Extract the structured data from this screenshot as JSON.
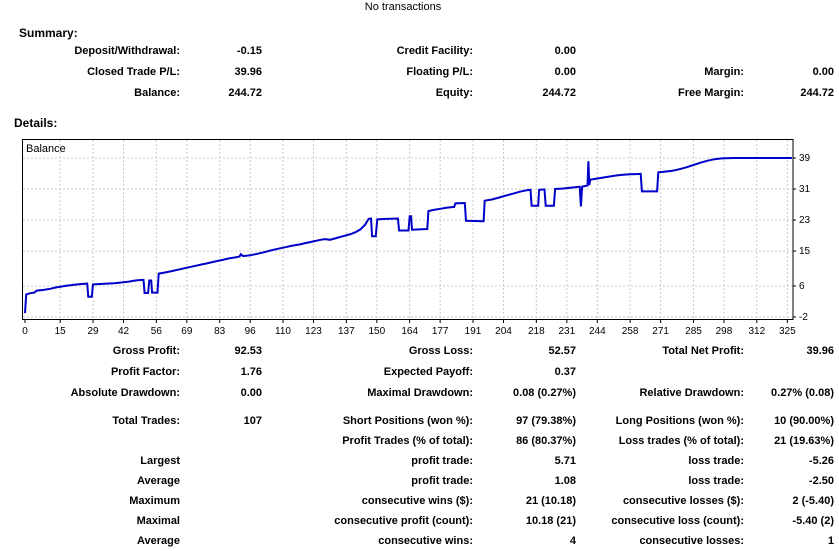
{
  "header": {
    "title": "No transactions"
  },
  "summary": {
    "heading": "Summary:",
    "rows": [
      [
        "Deposit/Withdrawal:",
        "-0.15",
        "Credit Facility:",
        "0.00",
        "",
        ""
      ],
      [
        "Closed Trade P/L:",
        "39.96",
        "Floating P/L:",
        "0.00",
        "Margin:",
        "0.00"
      ],
      [
        "Balance:",
        "244.72",
        "Equity:",
        "244.72",
        "Free Margin:",
        "244.72"
      ]
    ]
  },
  "details": {
    "heading": "Details:"
  },
  "chart_data": {
    "type": "line",
    "title": "Balance",
    "xlabel": "",
    "ylabel": "",
    "xlim": [
      0,
      327
    ],
    "ylim": [
      -2,
      39
    ],
    "x_ticks": [
      0,
      15,
      29,
      42,
      56,
      69,
      83,
      96,
      110,
      123,
      137,
      150,
      164,
      177,
      191,
      204,
      218,
      231,
      244,
      258,
      271,
      285,
      298,
      312,
      325
    ],
    "y_ticks": [
      39,
      31,
      23,
      15,
      6,
      -2
    ],
    "grid": "dashed",
    "grid_color": "#c9c9c9",
    "border_color": "#000000",
    "series": [
      {
        "name": "Balance",
        "color": "#0000c8",
        "points": [
          [
            0,
            -1
          ],
          [
            0.5,
            3.8
          ],
          [
            2,
            4.1
          ],
          [
            4,
            4.3
          ],
          [
            5,
            4.8
          ],
          [
            8,
            5
          ],
          [
            11,
            5.3
          ],
          [
            13,
            5.6
          ],
          [
            16,
            5.9
          ],
          [
            18,
            6.1
          ],
          [
            21,
            6.3
          ],
          [
            24,
            6.5
          ],
          [
            26.5,
            6.6
          ],
          [
            27,
            3.2
          ],
          [
            28.5,
            3.2
          ],
          [
            29,
            6.4
          ],
          [
            32,
            6.5
          ],
          [
            35,
            6.6
          ],
          [
            38,
            6.7
          ],
          [
            41,
            6.9
          ],
          [
            44,
            7.1
          ],
          [
            46,
            7.3
          ],
          [
            48,
            7.5
          ],
          [
            50.5,
            7.6
          ],
          [
            51,
            4.2
          ],
          [
            52.5,
            4.2
          ],
          [
            53,
            7.4
          ],
          [
            53.8,
            7.4
          ],
          [
            54.2,
            4.3
          ],
          [
            56.5,
            4.3
          ],
          [
            57,
            9.2
          ],
          [
            60,
            9.5
          ],
          [
            63,
            9.9
          ],
          [
            66,
            10.3
          ],
          [
            69,
            10.7
          ],
          [
            72,
            11.1
          ],
          [
            75,
            11.5
          ],
          [
            78,
            11.9
          ],
          [
            81,
            12.3
          ],
          [
            84,
            12.7
          ],
          [
            87,
            13.1
          ],
          [
            90,
            13.4
          ],
          [
            91.5,
            13.6
          ],
          [
            92,
            14.2
          ],
          [
            93,
            13.7
          ],
          [
            96,
            13.9
          ],
          [
            99,
            14.3
          ],
          [
            102,
            14.7
          ],
          [
            105,
            15.2
          ],
          [
            108,
            15.6
          ],
          [
            111,
            16
          ],
          [
            114,
            16.4
          ],
          [
            117,
            16.7
          ],
          [
            120,
            17.1
          ],
          [
            123,
            17.5
          ],
          [
            126,
            17.9
          ],
          [
            128,
            18.1
          ],
          [
            130,
            17.9
          ],
          [
            133,
            18.4
          ],
          [
            136,
            18.9
          ],
          [
            139,
            19.4
          ],
          [
            141,
            19.9
          ],
          [
            143,
            20.6
          ],
          [
            145,
            21.8
          ],
          [
            146.5,
            23.3
          ],
          [
            147.5,
            23.4
          ],
          [
            148,
            18.8
          ],
          [
            149.5,
            18.8
          ],
          [
            150.2,
            23.2
          ],
          [
            154,
            23.3
          ],
          [
            159,
            23.4
          ],
          [
            159.5,
            20.3
          ],
          [
            163.5,
            20.3
          ],
          [
            164,
            24
          ],
          [
            164.6,
            24
          ],
          [
            165,
            20.5
          ],
          [
            168,
            20.6
          ],
          [
            171.5,
            20.7
          ],
          [
            172,
            25.3
          ],
          [
            174,
            25.6
          ],
          [
            177,
            25.9
          ],
          [
            180,
            26.2
          ],
          [
            183,
            26.4
          ],
          [
            183.5,
            27.3
          ],
          [
            187.5,
            27.4
          ],
          [
            188,
            22.8
          ],
          [
            195.5,
            22.7
          ],
          [
            196,
            28
          ],
          [
            199,
            28.3
          ],
          [
            202,
            28.8
          ],
          [
            205,
            29.3
          ],
          [
            208,
            29.8
          ],
          [
            211,
            30.3
          ],
          [
            214,
            30.7
          ],
          [
            215.5,
            30.8
          ],
          [
            216,
            26.7
          ],
          [
            218.8,
            26.7
          ],
          [
            219.2,
            30.8
          ],
          [
            221.5,
            30.9
          ],
          [
            222,
            26.7
          ],
          [
            225.5,
            26.7
          ],
          [
            226,
            31
          ],
          [
            229,
            31.1
          ],
          [
            232,
            31.3
          ],
          [
            235,
            31.5
          ],
          [
            236.5,
            31.6
          ],
          [
            237,
            26.5
          ],
          [
            237.5,
            31.6
          ],
          [
            239,
            31.8
          ],
          [
            239.8,
            31.9
          ],
          [
            240.2,
            38.2
          ],
          [
            240.6,
            32
          ],
          [
            241,
            33.4
          ],
          [
            243,
            33.6
          ],
          [
            246,
            33.9
          ],
          [
            249,
            34.2
          ],
          [
            252,
            34.5
          ],
          [
            255,
            34.7
          ],
          [
            258,
            34.8
          ],
          [
            262.5,
            34.9
          ],
          [
            263,
            30.4
          ],
          [
            269.5,
            30.4
          ],
          [
            270,
            35.3
          ],
          [
            273,
            35.5
          ],
          [
            276,
            35.7
          ],
          [
            279,
            36.1
          ],
          [
            282,
            36.6
          ],
          [
            285,
            37.2
          ],
          [
            288,
            37.8
          ],
          [
            291,
            38.3
          ],
          [
            294,
            38.7
          ],
          [
            297,
            38.9
          ],
          [
            302,
            39
          ],
          [
            327,
            39
          ]
        ]
      }
    ]
  },
  "stats": {
    "rows": [
      [
        "Gross Profit:",
        "92.53",
        "Gross Loss:",
        "52.57",
        "Total Net Profit:",
        "39.96"
      ],
      [
        "Profit Factor:",
        "1.76",
        "Expected Payoff:",
        "0.37",
        "",
        ""
      ],
      [
        "Absolute Drawdown:",
        "0.00",
        "Maximal Drawdown:",
        "0.08 (0.27%)",
        "Relative Drawdown:",
        "0.27% (0.08)"
      ],
      [
        "Total Trades:",
        "107",
        "Short Positions (won %):",
        "97 (79.38%)",
        "Long Positions (won %):",
        "10 (90.00%)"
      ],
      [
        "",
        "",
        "Profit Trades (% of total):",
        "86 (80.37%)",
        "Loss trades (% of total):",
        "21 (19.63%)"
      ],
      [
        "Largest",
        "",
        "profit trade:",
        "5.71",
        "loss trade:",
        "-5.26"
      ],
      [
        "Average",
        "",
        "profit trade:",
        "1.08",
        "loss trade:",
        "-2.50"
      ],
      [
        "Maximum",
        "",
        "consecutive wins ($):",
        "21 (10.18)",
        "consecutive losses ($):",
        "2 (-5.40)"
      ],
      [
        "Maximal",
        "",
        "consecutive profit (count):",
        "10.18 (21)",
        "consecutive loss (count):",
        "-5.40 (2)"
      ],
      [
        "Average",
        "",
        "consecutive wins:",
        "4",
        "consecutive losses:",
        "1"
      ]
    ]
  }
}
